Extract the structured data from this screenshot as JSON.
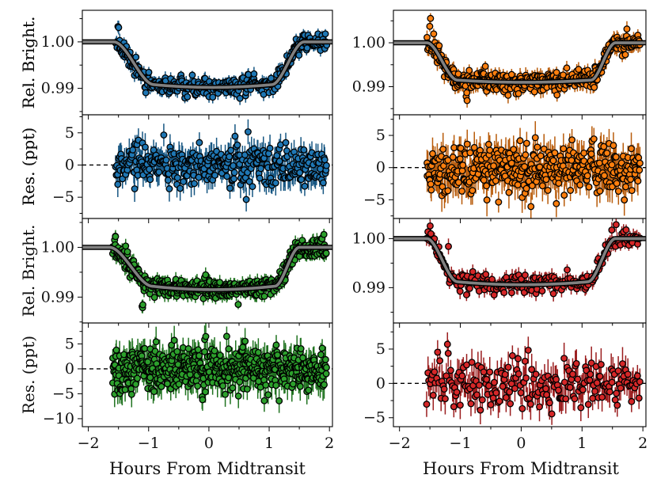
{
  "figure": {
    "xlabel": "Hours From Midtransit",
    "x_ticks": [
      -2,
      -1,
      0,
      1,
      2
    ],
    "x_tick_labels": [
      "−2",
      "−1",
      "0",
      "1",
      "2"
    ]
  },
  "chart_data": [
    {
      "type": "scatter",
      "name": "panel-1-light-curve",
      "ylabel": "Rel. Bright.",
      "xlim": [
        -2.1,
        2.05
      ],
      "ylim": [
        0.9843,
        1.0068
      ],
      "color": "#1f77b4",
      "y_ticks": [
        0.99,
        1.0
      ],
      "y_tick_labels": [
        "0.99",
        "1.00"
      ],
      "x_range": [
        -1.55,
        1.95
      ],
      "n_points": 340,
      "model": {
        "t1": -1.58,
        "t2": -0.92,
        "t3": 1.05,
        "t4": 1.58,
        "depth": 0.0092,
        "curvature": 0.0006
      },
      "noise_sigma": 0.0012,
      "point_offsets": [
        {
          "x": -1.5,
          "dy": 0.004
        },
        {
          "x": -1.05,
          "dy": -0.0035
        },
        {
          "x": -0.4,
          "dy": -0.003
        }
      ]
    },
    {
      "type": "scatter",
      "name": "panel-1-residuals",
      "ylabel": "Res. (ppt)",
      "xlim": [
        -2.1,
        2.05
      ],
      "ylim": [
        -8.3,
        7.8
      ],
      "color": "#1f77b4",
      "y_ticks": [
        -5,
        0,
        5
      ],
      "y_tick_labels": [
        "−5",
        "0",
        "5"
      ],
      "reference_line": 0,
      "x_range": [
        -1.55,
        1.95
      ],
      "n_points": 340,
      "noise_sigma": 1.6
    },
    {
      "type": "scatter",
      "name": "panel-2-light-curve",
      "ylabel": "Rel. Bright.",
      "xlim": [
        -2.1,
        2.05
      ],
      "ylim": [
        0.9836,
        1.0074
      ],
      "color": "#ff7f0e",
      "y_ticks": [
        0.99,
        1.0
      ],
      "y_tick_labels": [
        "0.99",
        "1.00"
      ],
      "x_range": [
        -1.55,
        1.95
      ],
      "n_points": 380,
      "model": {
        "t1": -1.55,
        "t2": -1.05,
        "t3": 1.15,
        "t4": 1.55,
        "depth": 0.0085,
        "curvature": 0.0005
      },
      "noise_sigma": 0.0015,
      "point_offsets": [
        {
          "x": -1.5,
          "dy": 0.004
        },
        {
          "x": -0.9,
          "dy": -0.004
        }
      ]
    },
    {
      "type": "scatter",
      "name": "panel-2-residuals",
      "ylabel": "Res. (ppt)",
      "xlim": [
        -2.1,
        2.05
      ],
      "ylim": [
        -7.9,
        8.2
      ],
      "color": "#ff7f0e",
      "y_ticks": [
        -5,
        0,
        5
      ],
      "y_tick_labels": [
        "−5",
        "0",
        "5"
      ],
      "reference_line": 0,
      "x_range": [
        -1.55,
        1.95
      ],
      "n_points": 380,
      "noise_sigma": 1.9
    },
    {
      "type": "scatter",
      "name": "panel-3-light-curve",
      "ylabel": "Rel. Bright.",
      "xlim": [
        -2.1,
        2.05
      ],
      "ylim": [
        0.9848,
        1.0058
      ],
      "color": "#2ca02c",
      "y_ticks": [
        0.99,
        1.0
      ],
      "y_tick_labels": [
        "0.99",
        "1.00"
      ],
      "x_range": [
        -1.6,
        1.95
      ],
      "n_points": 520,
      "model": {
        "t1": -1.65,
        "t2": -0.95,
        "t3": 1.1,
        "t4": 1.5,
        "depth": 0.0078,
        "curvature": 0.0007
      },
      "noise_sigma": 0.0012,
      "point_offsets": [
        {
          "x": -1.1,
          "dy": -0.004
        },
        {
          "x": -1.55,
          "dy": 0.003
        }
      ]
    },
    {
      "type": "scatter",
      "name": "panel-3-residuals",
      "ylabel": "Res. (ppt)",
      "xlim": [
        -2.1,
        2.05
      ],
      "ylim": [
        -11.6,
        9.2
      ],
      "color": "#2ca02c",
      "y_ticks": [
        -10,
        -5,
        0,
        5
      ],
      "y_tick_labels": [
        "−10",
        "−5",
        "0",
        "5"
      ],
      "reference_line": 0,
      "x_range": [
        -1.6,
        1.95
      ],
      "n_points": 520,
      "noise_sigma": 2.2
    },
    {
      "type": "scatter",
      "name": "panel-4-light-curve",
      "ylabel": "",
      "xlim": [
        -2.1,
        2.05
      ],
      "ylim": [
        0.9828,
        1.0041
      ],
      "color": "#d62728",
      "y_ticks": [
        0.99,
        1.0
      ],
      "y_tick_labels": [
        "0.99",
        "1.00"
      ],
      "x_range": [
        -1.55,
        1.95
      ],
      "n_points": 200,
      "model": {
        "t1": -1.55,
        "t2": -1.05,
        "t3": 1.1,
        "t4": 1.55,
        "depth": 0.0088,
        "curvature": 0.0006
      },
      "noise_sigma": 0.0013,
      "point_offsets": [
        {
          "x": -1.5,
          "dy": 0.003
        },
        {
          "x": -1.2,
          "dy": 0.004
        }
      ]
    },
    {
      "type": "scatter",
      "name": "panel-4-residuals",
      "ylabel": "",
      "xlim": [
        -2.1,
        2.05
      ],
      "ylim": [
        -6.3,
        8.8
      ],
      "color": "#d62728",
      "y_ticks": [
        -5,
        0,
        5
      ],
      "y_tick_labels": [
        "−5",
        "0",
        "5"
      ],
      "reference_line": 0,
      "x_range": [
        -1.55,
        1.95
      ],
      "n_points": 200,
      "noise_sigma": 1.8,
      "point_offsets": [
        {
          "x": -1.2,
          "dy": 6
        },
        {
          "x": -1.55,
          "dy": -3.5
        }
      ]
    }
  ]
}
